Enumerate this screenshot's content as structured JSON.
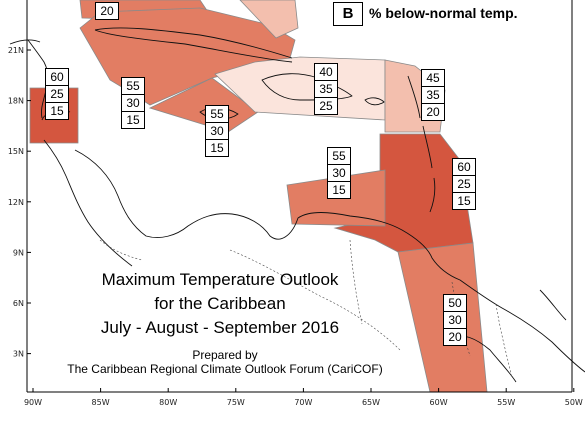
{
  "legend": {
    "key": "B",
    "description": "% below-normal temp."
  },
  "title": {
    "line1": "Maximum Temperature Outlook",
    "line2": "for the Caribbean",
    "line3": "July - August - September 2016"
  },
  "credit": {
    "prepared_by": "Prepared by",
    "organization": "The Caribbean Regional Climate Outlook Forum (CariCOF)"
  },
  "axes": {
    "longitude_ticks": [
      "90W",
      "85W",
      "80W",
      "75W",
      "70W",
      "65W",
      "60W",
      "55W",
      "50W"
    ],
    "latitude_ticks": [
      "21N",
      "18N",
      "15N",
      "12N",
      "9N",
      "6N",
      "3N"
    ]
  },
  "colors": {
    "strong": "#d4563f",
    "moderate": "#e27d63",
    "light": "#f3bfae",
    "very_light": "#fbe4dc"
  },
  "regions": [
    {
      "name": "top-partial",
      "values": [
        "20"
      ]
    },
    {
      "name": "belize",
      "values": [
        "60",
        "25",
        "15"
      ]
    },
    {
      "name": "cuba-cayman",
      "values": [
        "55",
        "30",
        "15"
      ]
    },
    {
      "name": "jamaica",
      "values": [
        "55",
        "30",
        "15"
      ]
    },
    {
      "name": "hispaniola",
      "values": [
        "40",
        "35",
        "25"
      ]
    },
    {
      "name": "leeward-islands",
      "values": [
        "45",
        "35",
        "20"
      ]
    },
    {
      "name": "abc-islands",
      "values": [
        "55",
        "30",
        "15"
      ]
    },
    {
      "name": "windward-islands",
      "values": [
        "60",
        "25",
        "15"
      ]
    },
    {
      "name": "guianas",
      "values": [
        "50",
        "30",
        "20"
      ]
    }
  ]
}
